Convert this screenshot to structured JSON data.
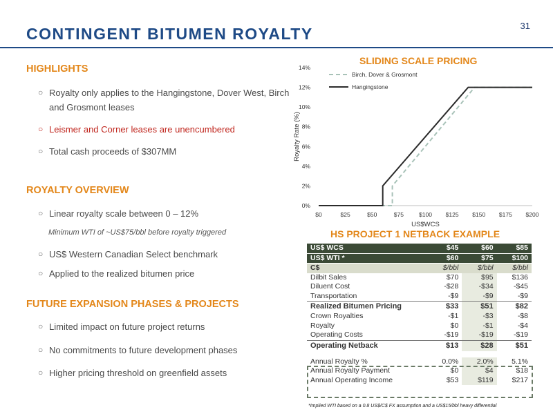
{
  "page_number": "31",
  "title": "CONTINGENT BITUMEN ROYALTY",
  "highlights": {
    "heading": "HIGHLIGHTS",
    "items": [
      "Royalty only applies to the Hangingstone, Dover West, Birch and Grosmont leases",
      "Leismer and Corner leases are unencumbered",
      "Total cash proceeds of $307MM"
    ]
  },
  "royalty_overview": {
    "heading": "ROYALTY OVERVIEW",
    "items": [
      "Linear royalty scale between 0 – 12%",
      "US$ Western Canadian Select benchmark",
      "Applied to the realized bitumen price"
    ],
    "note": "Minimum WTI of ~US$75/bbl before royalty triggered"
  },
  "future": {
    "heading": "FUTURE EXPANSION PHASES & PROJECTS",
    "items": [
      "Limited impact on future project returns",
      "No commitments to future development phases",
      "Higher pricing threshold on greenfield assets"
    ]
  },
  "colors": {
    "navy": "#1e4a86",
    "orange": "#e3871a",
    "red": "#c0261e",
    "dark_green": "#3b4a36"
  },
  "chart_data": {
    "type": "line",
    "title": "SLIDING SCALE PRICING",
    "xlabel": "US$WCS",
    "ylabel": "Royalty Rate (%)",
    "xlim": [
      0,
      200
    ],
    "ylim": [
      0,
      14
    ],
    "x_ticks": [
      "$0",
      "$25",
      "$50",
      "$75",
      "$100",
      "$125",
      "$150",
      "$175",
      "$200"
    ],
    "y_ticks": [
      "0%",
      "2%",
      "4%",
      "6%",
      "8%",
      "10%",
      "12%",
      "14%"
    ],
    "grid": false,
    "legend_position": "top-left",
    "series": [
      {
        "name": "Birch, Dover & Grosmont",
        "style": "dashed",
        "color": "#a8c2b8",
        "x": [
          0,
          69,
          69,
          146,
          200
        ],
        "y": [
          0,
          0,
          2,
          12,
          12
        ]
      },
      {
        "name": "Hangingstone",
        "style": "solid",
        "color": "#2b2b2b",
        "x": [
          0,
          60,
          60,
          140,
          200
        ],
        "y": [
          0,
          0,
          2,
          12,
          12
        ]
      }
    ]
  },
  "netback": {
    "title": "HS PROJECT 1 NETBACK EXAMPLE",
    "header_rows": [
      [
        "US$ WCS",
        "$45",
        "$60",
        "$85"
      ],
      [
        "US$ WTI *",
        "$60",
        "$75",
        "$100"
      ]
    ],
    "unit_row": [
      "C$",
      "$/bbl",
      "$/bbl",
      "$/bbl"
    ],
    "rows": [
      [
        "Dilbit Sales",
        "$70",
        "$95",
        "$136"
      ],
      [
        "Diluent Cost",
        "-$28",
        "-$34",
        "-$45"
      ],
      [
        "Transportation",
        "-$9",
        "-$9",
        "-$9"
      ]
    ],
    "subtotal1": [
      "Realized Bitumen Pricing",
      "$33",
      "$51",
      "$82"
    ],
    "rows2": [
      [
        "Crown Royalties",
        "-$1",
        "-$3",
        "-$8"
      ],
      [
        "Royalty",
        "$0",
        "-$1",
        "-$4"
      ],
      [
        "Operating Costs",
        "-$19",
        "-$19",
        "-$19"
      ]
    ],
    "subtotal2": [
      "Operating Netback",
      "$13",
      "$28",
      "$51"
    ],
    "royalty_rows": [
      [
        "Annual Royalty %",
        "0.0%",
        "2.0%",
        "5.1%"
      ],
      [
        "Annual Royalty Payment",
        "$0",
        "$4",
        "$18"
      ],
      [
        "Annual Operating Income",
        "$53",
        "$119",
        "$217"
      ]
    ],
    "footnote": "*Implied WTI based on a 0.8 US$/C$ FX assumption and a US$15/bbl heavy differential"
  }
}
